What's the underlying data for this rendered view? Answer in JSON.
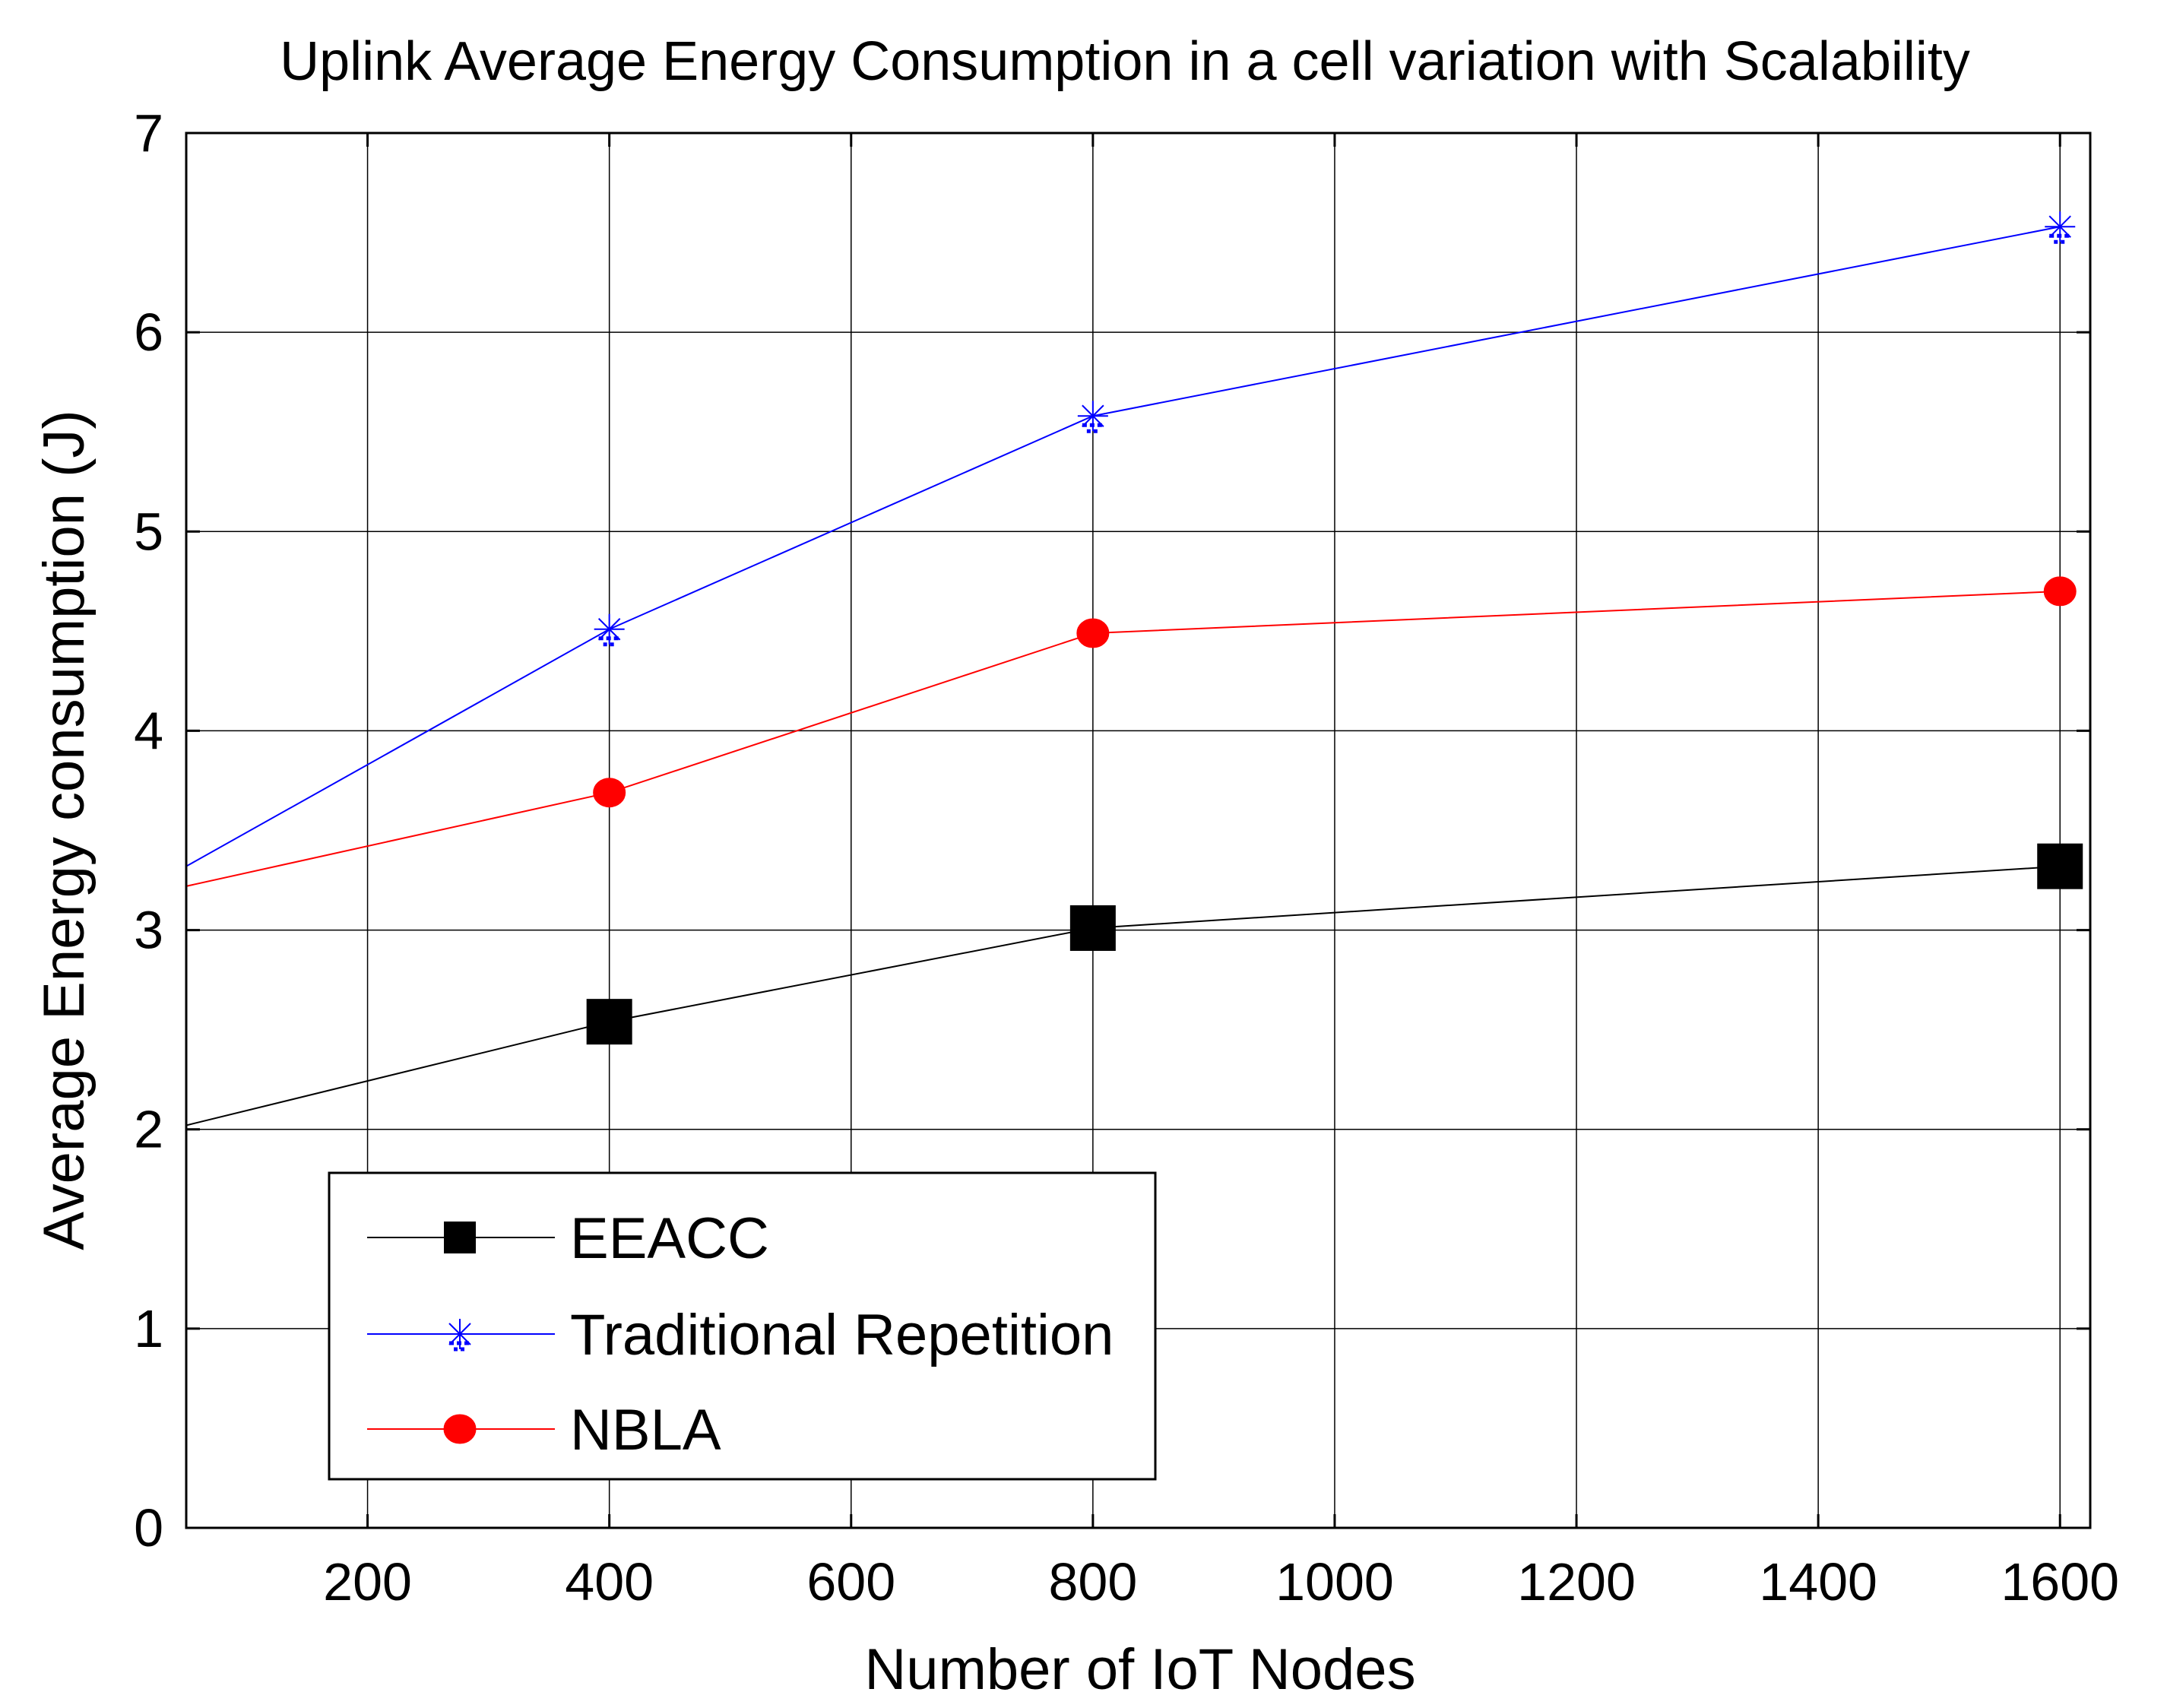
{
  "chart_data": {
    "type": "line",
    "title": "Uplink Average Energy Consumption in a cell variation with Scalability",
    "xlabel": "Number of IoT Nodes",
    "ylabel": "Average Energy consumption (J)",
    "xlim": [
      50,
      1625
    ],
    "ylim": [
      0,
      7
    ],
    "xticks": [
      200,
      400,
      600,
      800,
      1000,
      1200,
      1400,
      1600
    ],
    "yticks": [
      0,
      1,
      2,
      3,
      4,
      5,
      6,
      7
    ],
    "grid": true,
    "legend_position": "bottom-left",
    "series": [
      {
        "name": "EEACC",
        "color": "#000000",
        "marker": "square",
        "x": [
          50,
          400,
          800,
          1600
        ],
        "y": [
          2.02,
          2.54,
          3.01,
          3.32
        ],
        "marker_x": [
          400,
          800,
          1600
        ]
      },
      {
        "name": "Traditional Repetition",
        "color": "#0000ff",
        "marker": "asterisk",
        "x": [
          50,
          400,
          800,
          1600
        ],
        "y": [
          3.32,
          4.51,
          5.58,
          6.53
        ],
        "marker_x": [
          400,
          800,
          1600
        ]
      },
      {
        "name": "NBLA",
        "color": "#ff0000",
        "marker": "circle",
        "x": [
          50,
          400,
          800,
          1600
        ],
        "y": [
          3.22,
          3.69,
          4.49,
          4.7
        ],
        "marker_x": [
          400,
          800,
          1600
        ]
      }
    ]
  }
}
